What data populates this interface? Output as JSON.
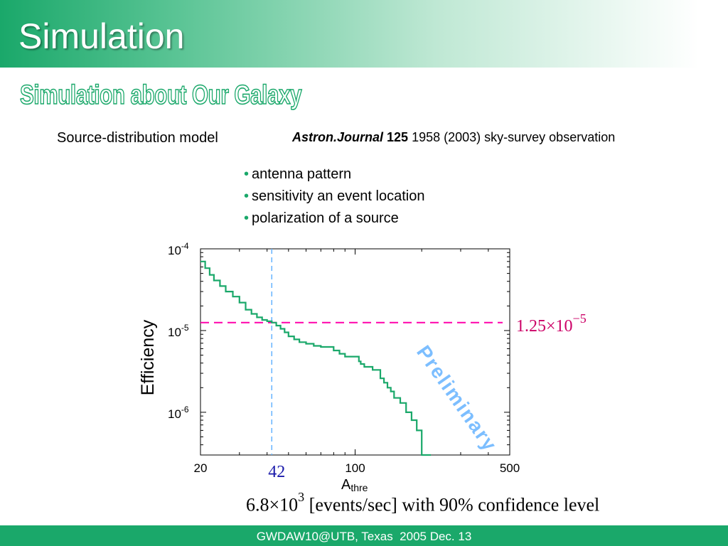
{
  "slide": {
    "title": "Simulation",
    "subtitle": "Simulation about Our Galaxy",
    "source_model": "Source-distribution model",
    "reference": {
      "journal": "Astron.Journal",
      "volume": "125",
      "rest": " 1958 (2003)  sky-survey observation"
    },
    "bullets": [
      "antenna pattern",
      "sensitivity an event location",
      "polarization of a source"
    ],
    "formula": {
      "mantissa": "6.8×10",
      "exponent": "3",
      "text": " [events/sec] with 90% confidence level"
    },
    "footer": "GWDAW10@UTB, Texas  2005 Dec. 13"
  },
  "colors": {
    "title_gradient": "#1aa86a",
    "curve": "#1aa86a",
    "threshold_line": "#ff00aa",
    "marker_line": "#66b3ff",
    "threshold_text": "#cc0066",
    "marker_text": "#1a1aaa",
    "watermark": "#66b3ff"
  },
  "chart_data": {
    "type": "line",
    "xscale": "log",
    "yscale": "log",
    "xlim": [
      20,
      500
    ],
    "ylim": [
      3e-07,
      0.0001
    ],
    "xlabel": "A",
    "xlabel_sub": "thre",
    "ylabel": "Efficiency",
    "xticks": [
      {
        "value": 20,
        "label": "20"
      },
      {
        "value": 100,
        "label": "100"
      },
      {
        "value": 500,
        "label": "500"
      }
    ],
    "yticks": [
      {
        "value": 0.0001,
        "base": "10",
        "exp": "-4"
      },
      {
        "value": 1e-05,
        "base": "10",
        "exp": "-5"
      },
      {
        "value": 1e-06,
        "base": "10",
        "exp": "-6"
      }
    ],
    "series": [
      {
        "x": [
          20,
          21,
          22,
          23,
          24.5,
          26,
          28,
          30,
          32,
          34,
          36,
          38,
          40,
          42,
          44,
          46,
          48,
          50,
          53,
          56,
          60,
          65,
          70,
          75,
          80,
          85,
          90,
          96,
          100,
          104,
          106,
          110,
          115,
          120,
          125,
          130,
          135,
          140,
          145,
          150,
          160,
          170,
          180,
          190,
          200,
          220
        ],
        "y": [
          7e-05,
          5.8e-05,
          4.8e-05,
          4.1e-05,
          3.5e-05,
          3e-05,
          2.6e-05,
          2.2e-05,
          1.8e-05,
          1.6e-05,
          1.45e-05,
          1.35e-05,
          1.3e-05,
          1.25e-05,
          1.15e-05,
          1.05e-05,
          9.5e-06,
          8.5e-06,
          7.8e-06,
          7.2e-06,
          6.9e-06,
          6.5e-06,
          6.3e-06,
          6.3e-06,
          5.7e-06,
          5.2e-06,
          4.8e-06,
          4.8e-06,
          4.8e-06,
          4.2e-06,
          3.9e-06,
          3.6e-06,
          3.6e-06,
          3.3e-06,
          3.3e-06,
          2.6e-06,
          2.3e-06,
          2e-06,
          1.8e-06,
          1.5e-06,
          1.3e-06,
          1e-06,
          8e-07,
          6e-07,
          3e-07,
          3e-07
        ]
      }
    ],
    "annotations": {
      "threshold": {
        "y": 1.25e-05,
        "label_mantissa": "1.25×10",
        "label_exp": "−5"
      },
      "marker": {
        "x": 42,
        "label": "42"
      },
      "watermark": "Preliminary"
    },
    "grid": false
  }
}
